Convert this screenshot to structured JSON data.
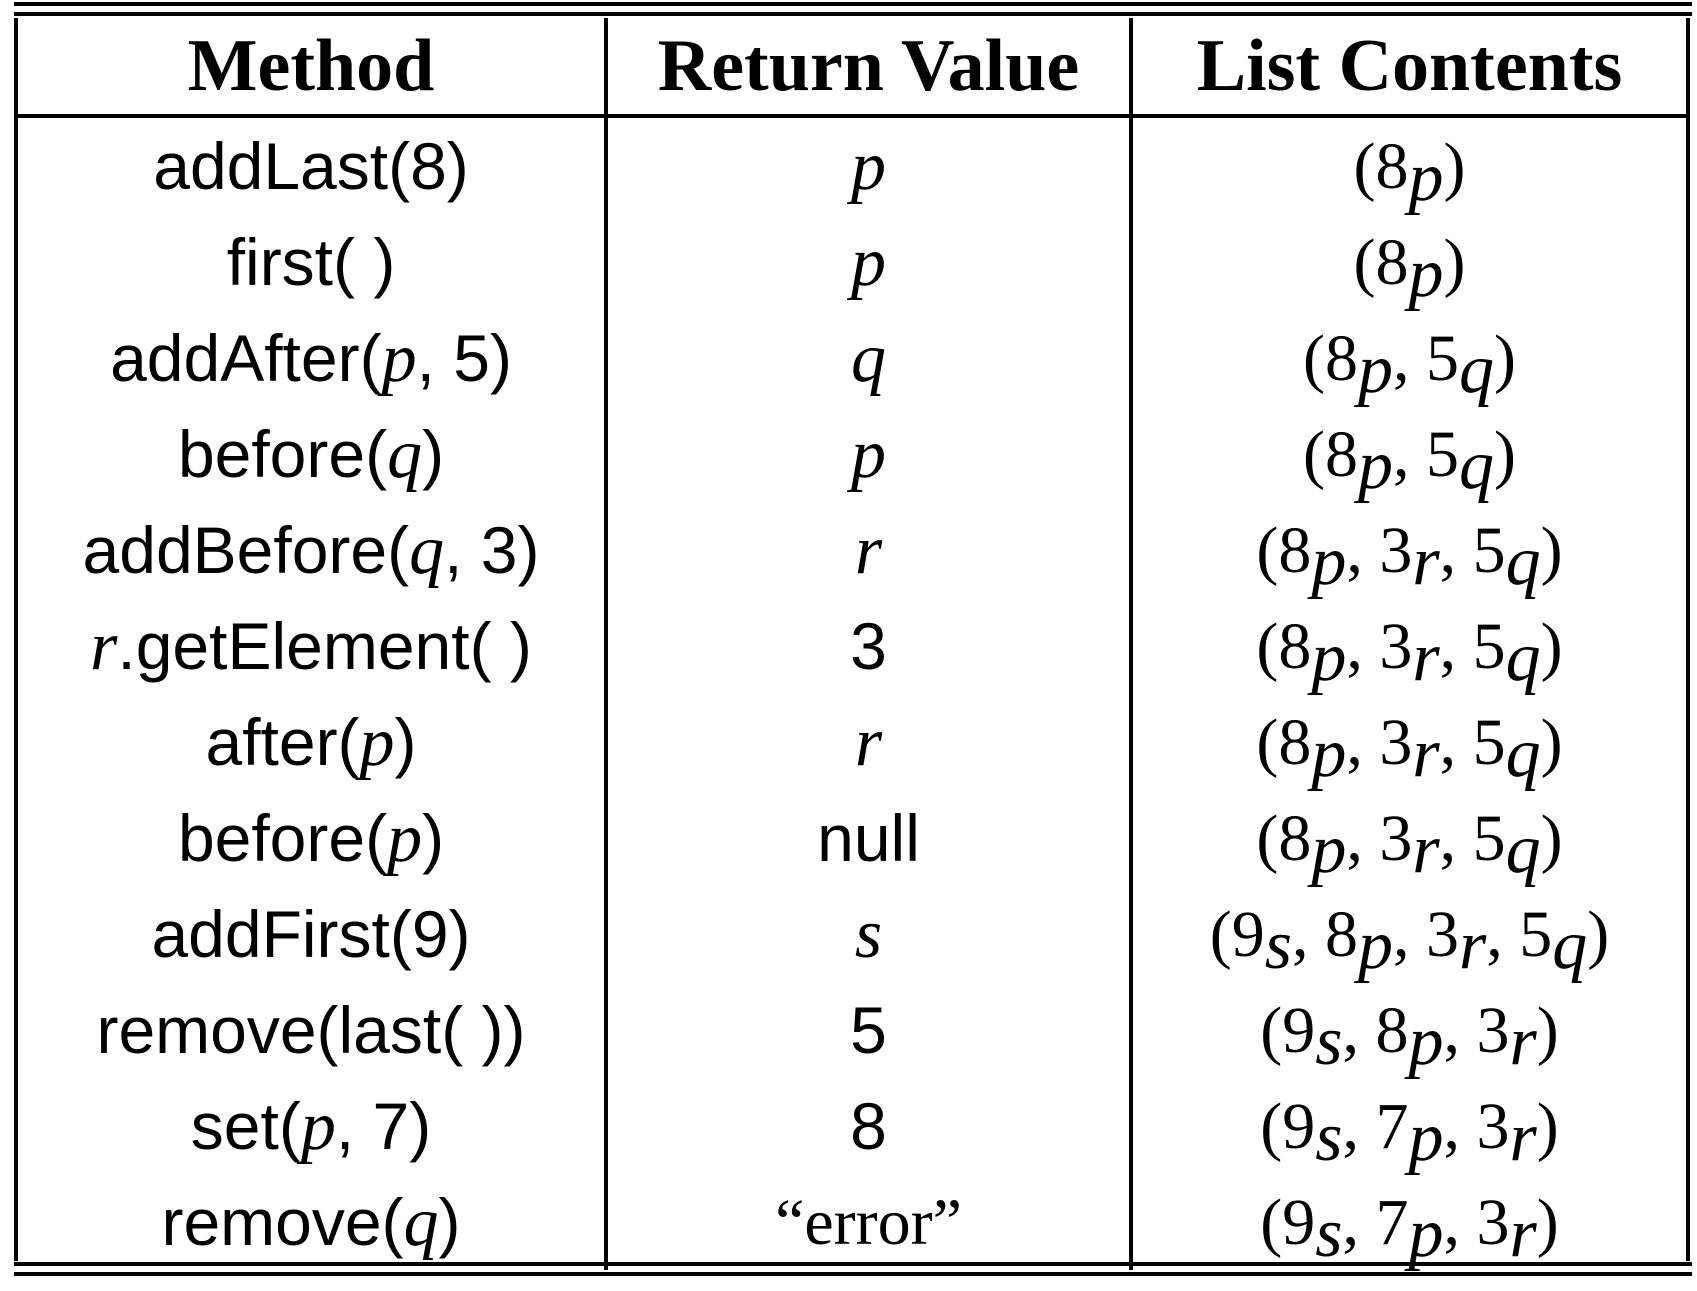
{
  "table": {
    "headers": {
      "method": "Method",
      "return_value": "Return Value",
      "list_contents": "List Contents"
    },
    "rows": [
      {
        "method": "addLast(8)",
        "return_value": "p",
        "list_contents": "(8p)"
      },
      {
        "method": "first( )",
        "return_value": "p",
        "list_contents": "(8p)"
      },
      {
        "method": "addAfter(p, 5)",
        "return_value": "q",
        "list_contents": "(8p, 5q)"
      },
      {
        "method": "before(q)",
        "return_value": "p",
        "list_contents": "(8p, 5q)"
      },
      {
        "method": "addBefore(q, 3)",
        "return_value": "r",
        "list_contents": "(8p, 3r, 5q)"
      },
      {
        "method": "r.getElement( )",
        "return_value": "3",
        "list_contents": "(8p, 3r, 5q)"
      },
      {
        "method": "after(p)",
        "return_value": "r",
        "list_contents": "(8p, 3r, 5q)"
      },
      {
        "method": "before(p)",
        "return_value": "null",
        "list_contents": "(8p, 3r, 5q)"
      },
      {
        "method": "addFirst(9)",
        "return_value": "s",
        "list_contents": "(9s, 8p, 3r, 5q)"
      },
      {
        "method": "remove(last( ))",
        "return_value": "5",
        "list_contents": "(9s, 8p, 3r)"
      },
      {
        "method": "set(p, 7)",
        "return_value": "8",
        "list_contents": "(9s, 7p, 3r)"
      },
      {
        "method": "remove(q)",
        "return_value": "“error”",
        "list_contents": "(9s, 7p, 3r)"
      }
    ]
  }
}
